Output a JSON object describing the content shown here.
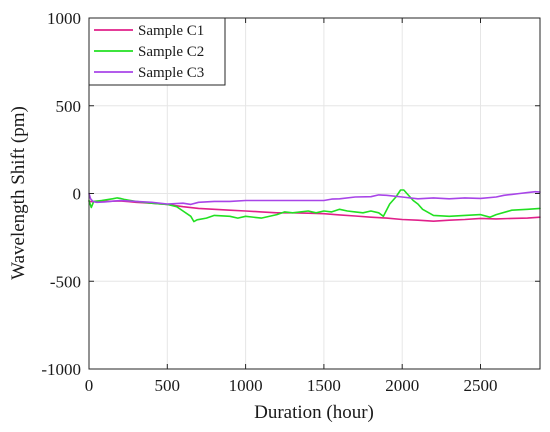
{
  "chart_data": {
    "type": "line",
    "title": "",
    "xlabel": "Duration (hour)",
    "ylabel": "Wavelength Shift (pm)",
    "xlim": [
      0,
      2880
    ],
    "ylim": [
      -1000,
      1000
    ],
    "xticks": [
      0,
      500,
      1000,
      1500,
      2000,
      2500
    ],
    "yticks": [
      -1000,
      -500,
      0,
      500,
      1000
    ],
    "xtick_labels": [
      "0",
      "500",
      "1000",
      "1500",
      "2000",
      "2500"
    ],
    "ytick_labels": [
      "-1000",
      "-500",
      "0",
      "500",
      "1000"
    ],
    "grid": true,
    "legend_position": "top-left",
    "series": [
      {
        "name": "Sample C1",
        "color": "#e0208a",
        "x": [
          0,
          50,
          100,
          200,
          300,
          400,
          500,
          600,
          700,
          800,
          900,
          1000,
          1100,
          1200,
          1300,
          1400,
          1500,
          1600,
          1700,
          1800,
          1900,
          2000,
          2100,
          2200,
          2300,
          2400,
          2500,
          2600,
          2700,
          2800,
          2880
        ],
        "y": [
          -45,
          -48,
          -45,
          -42,
          -50,
          -55,
          -62,
          -75,
          -85,
          -90,
          -95,
          -100,
          -105,
          -110,
          -110,
          -112,
          -115,
          -122,
          -128,
          -135,
          -140,
          -148,
          -152,
          -158,
          -152,
          -148,
          -142,
          -145,
          -142,
          -140,
          -135
        ]
      },
      {
        "name": "Sample C2",
        "color": "#22e022",
        "x": [
          0,
          15,
          30,
          80,
          150,
          180,
          200,
          230,
          300,
          400,
          500,
          560,
          600,
          650,
          670,
          690,
          750,
          800,
          900,
          950,
          1000,
          1100,
          1200,
          1250,
          1300,
          1400,
          1450,
          1500,
          1550,
          1600,
          1650,
          1700,
          1750,
          1800,
          1850,
          1880,
          1920,
          1960,
          1990,
          2010,
          2030,
          2070,
          2100,
          2130,
          2200,
          2300,
          2400,
          2500,
          2560,
          2600,
          2700,
          2800,
          2880
        ],
        "y": [
          -40,
          -80,
          -45,
          -40,
          -30,
          -25,
          -28,
          -35,
          -45,
          -55,
          -62,
          -75,
          -100,
          -130,
          -160,
          -150,
          -140,
          -125,
          -130,
          -140,
          -130,
          -140,
          -120,
          -105,
          -110,
          -100,
          -110,
          -100,
          -105,
          -90,
          -100,
          -105,
          -110,
          -100,
          -110,
          -130,
          -60,
          -20,
          20,
          20,
          0,
          -40,
          -60,
          -90,
          -125,
          -130,
          -125,
          -120,
          -135,
          -120,
          -95,
          -90,
          -85
        ]
      },
      {
        "name": "Sample C3",
        "color": "#a845e8",
        "x": [
          0,
          10,
          25,
          50,
          100,
          200,
          300,
          400,
          500,
          600,
          650,
          700,
          800,
          900,
          1000,
          1100,
          1200,
          1300,
          1400,
          1500,
          1550,
          1600,
          1700,
          1800,
          1850,
          1900,
          2000,
          2100,
          2200,
          2300,
          2400,
          2500,
          2600,
          2650,
          2700,
          2750,
          2800,
          2850,
          2880
        ],
        "y": [
          0,
          -30,
          -45,
          -50,
          -48,
          -40,
          -45,
          -50,
          -60,
          -55,
          -62,
          -50,
          -45,
          -45,
          -40,
          -40,
          -40,
          -40,
          -40,
          -40,
          -32,
          -30,
          -20,
          -18,
          -8,
          -10,
          -20,
          -30,
          -25,
          -30,
          -25,
          -28,
          -20,
          -10,
          -5,
          0,
          5,
          10,
          8
        ]
      }
    ]
  }
}
